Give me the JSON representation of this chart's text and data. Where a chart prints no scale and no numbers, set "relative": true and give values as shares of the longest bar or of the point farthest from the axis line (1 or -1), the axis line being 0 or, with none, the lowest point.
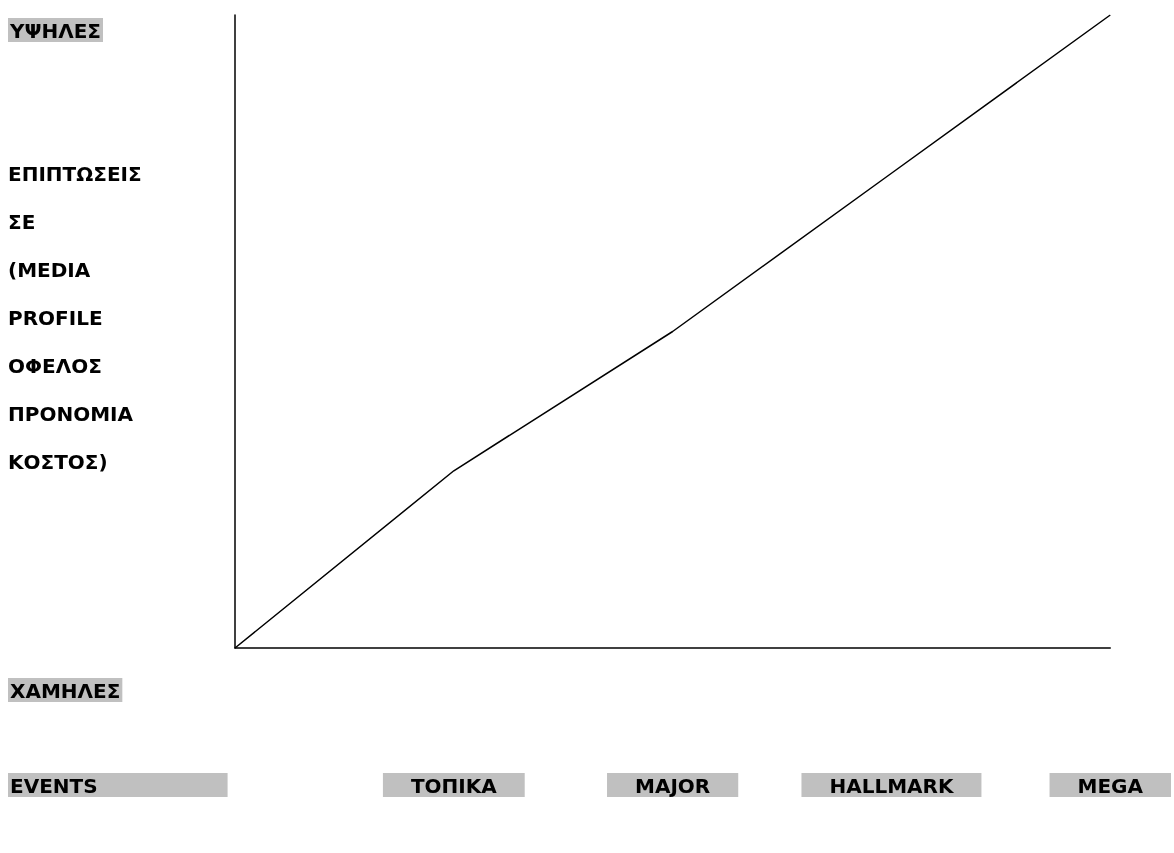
{
  "chart_data": {
    "type": "line",
    "relative": true,
    "ylabel": "ΕΠΙΠΤΩΣΕΙΣ ΣΕ (MEDIA PROFILE ΟΦΕΛΟΣ ΠΡΟΝΟΜΙΑ ΚΟΣΤΟΣ)",
    "annotations": [
      "ΥΨΗΛΕΣ",
      "ΧΑΜΗΛΕΣ",
      "EVENTS"
    ],
    "categories": [
      null,
      "ΤΟΠΙΚΑ",
      "MAJOR",
      "HALLMARK",
      "MEGA"
    ],
    "values": [
      0,
      0.28,
      0.5,
      0.75,
      1
    ],
    "color": "#000000",
    "marker": "none"
  }
}
